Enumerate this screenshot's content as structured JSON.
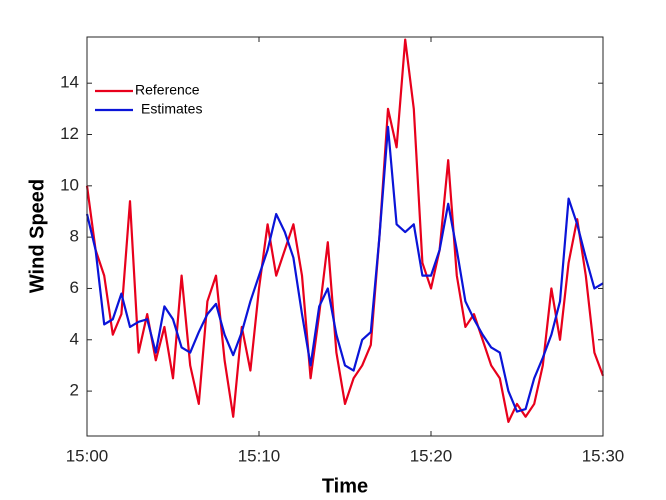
{
  "chart_data": {
    "type": "line",
    "xlabel": "Time",
    "ylabel": "Wind Speed",
    "x": [
      0,
      0.5,
      1,
      1.5,
      2,
      2.5,
      3,
      3.5,
      4,
      4.5,
      5,
      5.5,
      6,
      6.5,
      7,
      7.5,
      8,
      8.5,
      9,
      9.5,
      10,
      10.5,
      11,
      11.5,
      12,
      12.5,
      13,
      13.5,
      14,
      14.5,
      15,
      15.5,
      16,
      16.5,
      17,
      17.5,
      18,
      18.5,
      19,
      19.5,
      20,
      20.5,
      21,
      21.5,
      22,
      22.5,
      23,
      23.5,
      24,
      24.5,
      25,
      25.5,
      26,
      26.5,
      27,
      27.5,
      28,
      28.5,
      29,
      29.5,
      30
    ],
    "series": [
      {
        "name": "Reference",
        "color": "#e8001c",
        "values": [
          10.0,
          7.5,
          6.5,
          4.2,
          5.0,
          9.4,
          3.5,
          5.0,
          3.2,
          4.5,
          2.5,
          6.5,
          3.0,
          1.5,
          5.5,
          6.5,
          3.2,
          1.0,
          4.5,
          2.8,
          6.0,
          8.5,
          6.5,
          7.5,
          8.5,
          6.5,
          2.5,
          5.0,
          7.8,
          3.5,
          1.5,
          2.5,
          3.0,
          3.8,
          8.0,
          13.0,
          11.5,
          15.7,
          13.0,
          7.0,
          6.0,
          7.5,
          11.0,
          6.5,
          4.5,
          5.0,
          4.0,
          3.0,
          2.5,
          0.8,
          1.5,
          1.0,
          1.5,
          3.0,
          6.0,
          4.0,
          7.0,
          8.7,
          6.5,
          3.5,
          2.6
        ]
      },
      {
        "name": "Estimates",
        "color": "#0a14d8",
        "values": [
          8.9,
          7.5,
          4.6,
          4.8,
          5.8,
          4.5,
          4.7,
          4.8,
          3.5,
          5.3,
          4.8,
          3.7,
          3.5,
          4.3,
          5.0,
          5.4,
          4.2,
          3.4,
          4.3,
          5.5,
          6.5,
          7.5,
          8.9,
          8.2,
          7.2,
          5.0,
          3.0,
          5.3,
          6.0,
          4.2,
          3.0,
          2.8,
          4.0,
          4.3,
          8.0,
          12.3,
          8.5,
          8.2,
          8.5,
          6.5,
          6.5,
          7.5,
          9.3,
          7.5,
          5.5,
          4.8,
          4.2,
          3.7,
          3.5,
          2.0,
          1.2,
          1.3,
          2.5,
          3.3,
          4.2,
          5.5,
          9.5,
          8.5,
          7.2,
          6.0,
          6.2
        ]
      }
    ],
    "xlim": [
      0,
      30
    ],
    "xticks": [
      {
        "value": 0,
        "label": "15:00"
      },
      {
        "value": 10,
        "label": "15:10"
      },
      {
        "value": 20,
        "label": "15:20"
      },
      {
        "value": 30,
        "label": "15:30"
      }
    ],
    "ylim": [
      0.25,
      15.8
    ],
    "yticks": [
      2,
      4,
      6,
      8,
      10,
      12,
      14
    ],
    "legend": "upper left",
    "grid": false
  }
}
